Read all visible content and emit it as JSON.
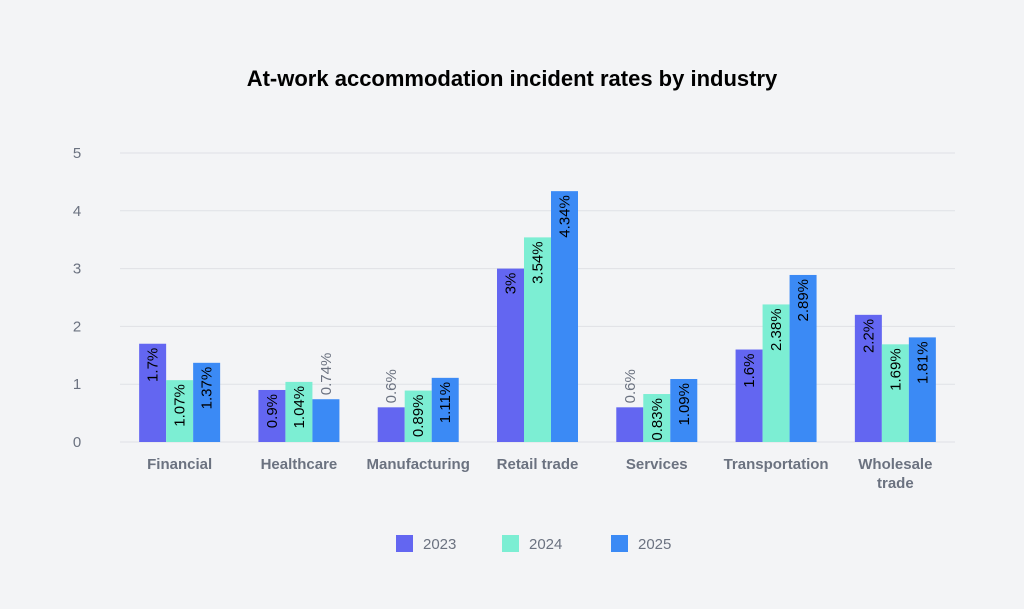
{
  "chart_data": {
    "type": "bar",
    "title": "At-work accommodation incident rates by industry",
    "xlabel": "",
    "ylabel": "",
    "ylim": [
      0,
      5
    ],
    "yticks": [
      "0",
      "1",
      "2",
      "3",
      "4",
      "5"
    ],
    "grid": true,
    "legend_position": "bottom",
    "categories": [
      [
        "Financial"
      ],
      [
        "Healthcare"
      ],
      [
        "Manufacturing"
      ],
      [
        "Retail trade"
      ],
      [
        "Services"
      ],
      [
        "Transportation"
      ],
      [
        "Wholesale",
        "trade"
      ]
    ],
    "series": [
      {
        "name": "2023",
        "color": "#6366f1",
        "values": [
          1.7,
          0.9,
          0.6,
          3,
          0.6,
          1.6,
          2.2
        ],
        "labels": [
          "1.7%",
          "0.9%",
          "0.6%",
          "3%",
          "0.6%",
          "1.6%",
          "2.2%"
        ]
      },
      {
        "name": "2024",
        "color": "#7ceed3",
        "values": [
          1.07,
          1.04,
          0.89,
          3.54,
          0.83,
          2.38,
          1.69
        ],
        "labels": [
          "1.07%",
          "1.04%",
          "0.89%",
          "3.54%",
          "0.83%",
          "2.38%",
          "1.69%"
        ]
      },
      {
        "name": "2025",
        "color": "#3b8af5",
        "values": [
          1.37,
          0.74,
          1.11,
          4.34,
          1.09,
          2.89,
          1.81
        ],
        "labels": [
          "1.37%",
          "0.74%",
          "1.11%",
          "4.34%",
          "1.09%",
          "2.89%",
          "1.81%"
        ]
      }
    ]
  }
}
